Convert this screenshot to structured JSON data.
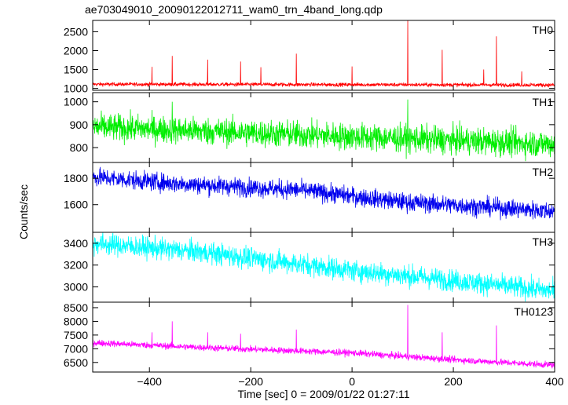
{
  "chart": {
    "title": "ae703049010_20090122012711_wam0_trn_4band_long.qdp",
    "ylabel": "Counts/sec",
    "xlabel": "Time [sec] 0 = 2009/01/22 01:27:11"
  },
  "chart_data": {
    "type": "line",
    "title": "ae703049010_20090122012711_wam0_trn_4band_long.qdp",
    "xlabel": "Time [sec] 0 = 2009/01/22 01:27:11",
    "ylabel": "Counts/sec",
    "xlim": [
      -512,
      400
    ],
    "x_ticks": [
      -400,
      -200,
      0,
      200,
      400
    ],
    "panels": [
      {
        "name": "TH0",
        "color": "#ff0000",
        "ylim": [
          950,
          2800
        ],
        "y_ticks": [
          1000,
          1500,
          2000,
          2500
        ],
        "baseline": [
          [
            -512,
            1110
          ],
          [
            400,
            1090
          ]
        ],
        "noise": 25,
        "spikes": [
          [
            -395,
            1570
          ],
          [
            -355,
            1860
          ],
          [
            -285,
            1760
          ],
          [
            -220,
            1710
          ],
          [
            -180,
            1560
          ],
          [
            -110,
            1920
          ],
          [
            0,
            1580
          ],
          [
            110,
            2800
          ],
          [
            178,
            2020
          ],
          [
            260,
            1500
          ],
          [
            285,
            2380
          ],
          [
            335,
            1450
          ]
        ]
      },
      {
        "name": "TH1",
        "color": "#00ee00",
        "ylim": [
          735,
          1040
        ],
        "y_ticks": [
          800,
          900,
          1000
        ],
        "baseline": [
          [
            -512,
            890
          ],
          [
            400,
            815
          ]
        ],
        "noise": 30,
        "spikes": [
          [
            -355,
            1000
          ],
          [
            110,
            1010
          ]
        ]
      },
      {
        "name": "TH2",
        "color": "#0000ee",
        "ylim": [
          1390,
          1920
        ],
        "y_ticks": [
          1600,
          1800
        ],
        "baseline": [
          [
            -512,
            1810
          ],
          [
            -350,
            1760
          ],
          [
            -100,
            1710
          ],
          [
            100,
            1620
          ],
          [
            400,
            1550
          ]
        ],
        "noise": 35,
        "spikes": []
      },
      {
        "name": "TH3",
        "color": "#00ffff",
        "ylim": [
          2860,
          3500
        ],
        "y_ticks": [
          3000,
          3200,
          3400
        ],
        "baseline": [
          [
            -512,
            3400
          ],
          [
            -300,
            3320
          ],
          [
            0,
            3150
          ],
          [
            200,
            3060
          ],
          [
            400,
            2960
          ]
        ],
        "noise": 50,
        "spikes": []
      },
      {
        "name": "TH0123",
        "color": "#ff00ff",
        "ylim": [
          6150,
          8700
        ],
        "y_ticks": [
          6500,
          7000,
          7500,
          8000,
          8500
        ],
        "baseline": [
          [
            -512,
            7220
          ],
          [
            -300,
            7050
          ],
          [
            0,
            6850
          ],
          [
            200,
            6600
          ],
          [
            400,
            6400
          ]
        ],
        "noise": 60,
        "spikes": [
          [
            -395,
            7600
          ],
          [
            -355,
            8000
          ],
          [
            -285,
            7600
          ],
          [
            -220,
            7550
          ],
          [
            -110,
            7700
          ],
          [
            110,
            8600
          ],
          [
            178,
            7600
          ],
          [
            285,
            7850
          ]
        ]
      }
    ]
  }
}
